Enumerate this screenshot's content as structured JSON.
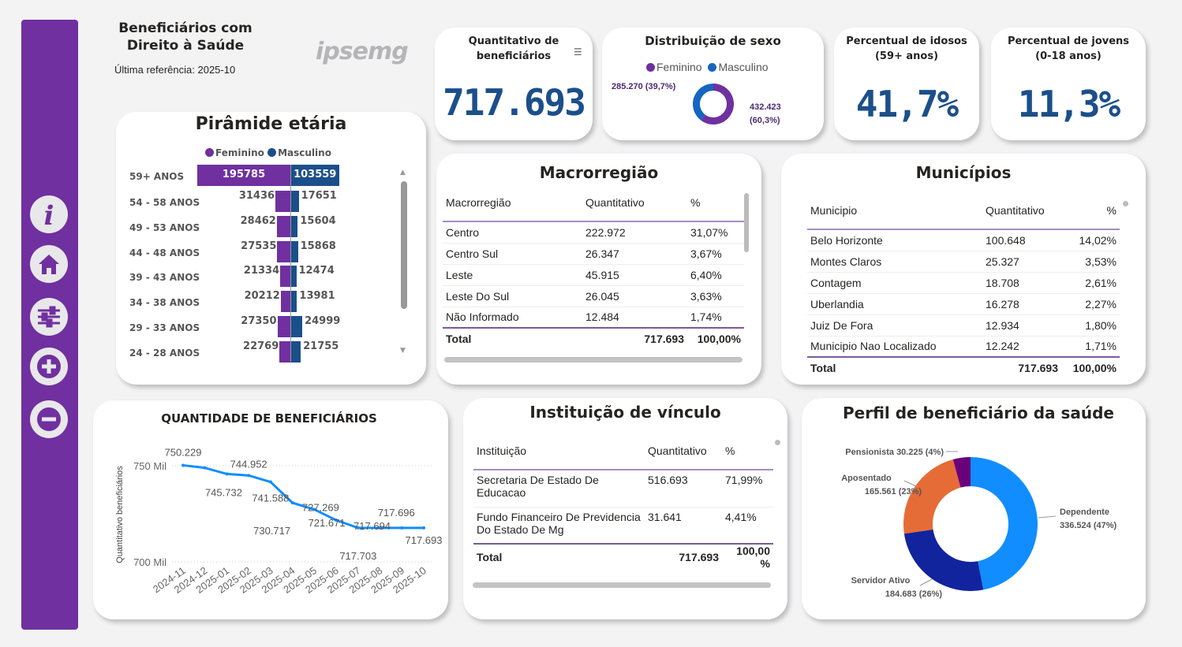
{
  "header": {
    "title_line1": "Beneficiários com",
    "title_line2": "Direito à Saúde",
    "reference": "Última referência: 2025-10",
    "logo_text": "ipsemg"
  },
  "nav": [
    {
      "icon": "info-icon"
    },
    {
      "icon": "home-icon"
    },
    {
      "icon": "sliders-icon"
    },
    {
      "icon": "plus-icon"
    },
    {
      "icon": "minus-icon"
    }
  ],
  "kpis": {
    "total": {
      "title_line1": "Quantitativo de",
      "title_line2": "beneficiários",
      "value": "717.693"
    },
    "idosos": {
      "title_line1": "Percentual de idosos",
      "title_line2": "(59+ anos)",
      "value": "41,7%"
    },
    "jovens": {
      "title_line1": "Percentual de jovens",
      "title_line2": "(0-18 anos)",
      "value": "11,3%"
    }
  },
  "colors": {
    "feminino": "#7030a0",
    "masculino": "#1565c0",
    "purple": "#7030a0",
    "kpi": "#1b4f8a",
    "line": "#118dff"
  },
  "sexo": {
    "title": "Distribuição de sexo",
    "legend": [
      "Feminino",
      "Masculino"
    ],
    "masculino": {
      "value": 285270,
      "label": "285.270 (39,7%)"
    },
    "feminino": {
      "value": 432423,
      "label1": "432.423",
      "label2": "(60,3%)"
    }
  },
  "piramide": {
    "title": "Pirâmide etária",
    "legend": [
      "Feminino",
      "Masculino"
    ],
    "rows": [
      {
        "age": "59+ ANOS",
        "f": 195785,
        "m": 103559
      },
      {
        "age": "54 - 58 ANOS",
        "f": 31436,
        "m": 17651
      },
      {
        "age": "49 - 53 ANOS",
        "f": 28462,
        "m": 15604
      },
      {
        "age": "44 - 48 ANOS",
        "f": 27535,
        "m": 15868
      },
      {
        "age": "39 - 43 ANOS",
        "f": 21334,
        "m": 12474
      },
      {
        "age": "34 - 38 ANOS",
        "f": 20212,
        "m": 13981
      },
      {
        "age": "29 - 33 ANOS",
        "f": 27350,
        "m": 24999
      },
      {
        "age": "24 - 28 ANOS",
        "f": 22769,
        "m": 21755
      }
    ]
  },
  "macro": {
    "title": "Macrorregião",
    "headers": [
      "Macrorregião",
      "Quantitativo",
      "%"
    ],
    "rows": [
      [
        "Centro",
        "222.972",
        "31,07%"
      ],
      [
        "Centro Sul",
        "26.347",
        "3,67%"
      ],
      [
        "Leste",
        "45.915",
        "6,40%"
      ],
      [
        "Leste Do Sul",
        "26.045",
        "3,63%"
      ],
      [
        "Não Informado",
        "12.484",
        "1,74%"
      ]
    ],
    "total": [
      "Total",
      "717.693",
      "100,00%"
    ]
  },
  "municipios": {
    "title": "Municípios",
    "headers": [
      "Municipio",
      "Quantitativo",
      "%"
    ],
    "rows": [
      [
        "Belo Horizonte",
        "100.648",
        "14,02%"
      ],
      [
        "Montes Claros",
        "25.327",
        "3,53%"
      ],
      [
        "Contagem",
        "18.708",
        "2,61%"
      ],
      [
        "Uberlandia",
        "16.278",
        "2,27%"
      ],
      [
        "Juiz De Fora",
        "12.934",
        "1,80%"
      ],
      [
        "Municipio Nao Localizado",
        "12.242",
        "1,71%"
      ]
    ],
    "total": [
      "Total",
      "717.693",
      "100,00%"
    ]
  },
  "instituicao": {
    "title": "Instituição de vínculo",
    "headers": [
      "Instituição",
      "Quantitativo",
      "%"
    ],
    "rows": [
      [
        "Secretaria De Estado De Educacao",
        "516.693",
        "71,99%"
      ],
      [
        "Fundo Financeiro De Previdencia Do Estado De Mg",
        "31.641",
        "4,41%"
      ]
    ],
    "total": [
      "Total",
      "717.693",
      "100,00 %"
    ]
  },
  "chart_data": [
    {
      "type": "line",
      "title": "QUANTIDADE DE BENEFICIÁRIOS",
      "xlabel": "",
      "ylabel": "Quantitativo beneficiários",
      "categories": [
        "2024-11",
        "2024-12",
        "2025-01",
        "2025-02",
        "2025-03",
        "2025-04",
        "2025-05",
        "2025-06",
        "2025-07",
        "2025-08",
        "2025-09",
        "2025-10"
      ],
      "values": [
        750229,
        748900,
        745732,
        744952,
        741588,
        730717,
        727269,
        721671,
        717703,
        717694,
        717696,
        717693
      ],
      "data_labels": [
        "750.229",
        "",
        "745.732",
        "744.952",
        "741.588",
        "730.717",
        "727.269",
        "721.671",
        "717.703",
        "717.694",
        "717.696",
        "717.693"
      ],
      "yticks": [
        "700 Mil",
        "750 Mil"
      ],
      "ylim": [
        700000,
        750000
      ],
      "grid": true
    },
    {
      "type": "pie",
      "title": "Perfil de beneficiário da saúde",
      "slices": [
        {
          "name": "Dependente",
          "value": 336524,
          "label": "336.524 (47%)",
          "color": "#118dff"
        },
        {
          "name": "Servidor Ativo",
          "value": 184683,
          "label": "184.683 (26%)",
          "color": "#12239e"
        },
        {
          "name": "Aposentado",
          "value": 165561,
          "label": "165.561 (23%)",
          "color": "#e66c37"
        },
        {
          "name": "Pensionista",
          "value": 30225,
          "label": "30.225 (4%)",
          "color": "#6b007b"
        }
      ]
    }
  ]
}
